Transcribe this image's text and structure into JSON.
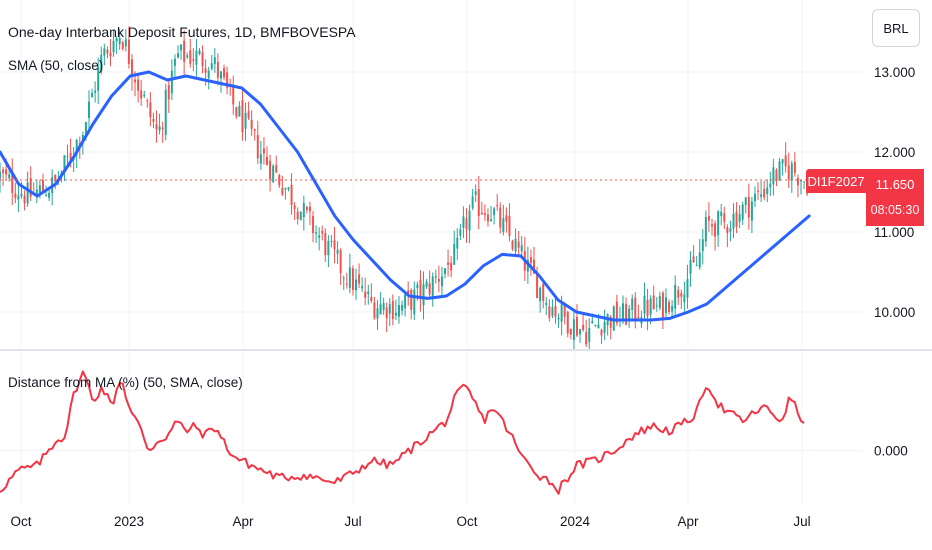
{
  "header": {
    "symbol_title": "One-day Interbank Deposit Futures, 1D, BMFBOVESPA",
    "sma_label": "SMA (50, close)",
    "distance_label": "Distance from MA (%) (50, SMA, close)",
    "currency": "BRL"
  },
  "price_tags": {
    "symbol": "DI1F2027",
    "last_price": "11.650",
    "countdown": "08:05:30"
  },
  "colors": {
    "up": "#26a69a",
    "down": "#ef5350",
    "sma": "#2962ff",
    "distance": "#f23645",
    "tag": "#f23645"
  },
  "chart_data": [
    {
      "type": "candlestick",
      "title": "One-day Interbank Deposit Futures, 1D, BMFBOVESPA",
      "y_ticks": [
        "13.000",
        "12.000",
        "11.000",
        "10.000"
      ],
      "y_tick_values": [
        13.0,
        12.0,
        11.0,
        10.0
      ],
      "ylim": [
        9.55,
        13.9
      ],
      "last_price": 11.65,
      "close_path": [
        [
          0,
          11.7
        ],
        [
          0.03,
          11.45
        ],
        [
          0.06,
          11.6
        ],
        [
          0.09,
          12.3
        ],
        [
          0.11,
          13.2
        ],
        [
          0.13,
          13.5
        ],
        [
          0.15,
          12.8
        ],
        [
          0.17,
          12.2
        ],
        [
          0.19,
          13.2
        ],
        [
          0.21,
          13.2
        ],
        [
          0.23,
          13.1
        ],
        [
          0.25,
          12.6
        ],
        [
          0.28,
          12.0
        ],
        [
          0.31,
          11.5
        ],
        [
          0.34,
          11.0
        ],
        [
          0.37,
          10.5
        ],
        [
          0.4,
          10.1
        ],
        [
          0.43,
          10.05
        ],
        [
          0.46,
          10.3
        ],
        [
          0.49,
          10.7
        ],
        [
          0.5,
          11.1
        ],
        [
          0.51,
          11.35
        ],
        [
          0.53,
          11.25
        ],
        [
          0.55,
          10.9
        ],
        [
          0.57,
          10.5
        ],
        [
          0.59,
          10.1
        ],
        [
          0.61,
          9.9
        ],
        [
          0.63,
          9.75
        ],
        [
          0.65,
          9.9
        ],
        [
          0.67,
          9.95
        ],
        [
          0.69,
          10.05
        ],
        [
          0.71,
          10.05
        ],
        [
          0.73,
          10.3
        ],
        [
          0.75,
          10.6
        ],
        [
          0.76,
          11.1
        ],
        [
          0.78,
          11.1
        ],
        [
          0.8,
          11.3
        ],
        [
          0.82,
          11.5
        ],
        [
          0.83,
          11.7
        ],
        [
          0.85,
          11.8
        ],
        [
          0.86,
          11.7
        ],
        [
          0.87,
          11.6
        ]
      ],
      "series": [
        {
          "name": "SMA (50, close)",
          "points": [
            [
              0,
              12.0
            ],
            [
              0.02,
              11.6
            ],
            [
              0.04,
              11.45
            ],
            [
              0.06,
              11.6
            ],
            [
              0.08,
              11.95
            ],
            [
              0.1,
              12.35
            ],
            [
              0.12,
              12.7
            ],
            [
              0.14,
              12.95
            ],
            [
              0.16,
              13.0
            ],
            [
              0.18,
              12.9
            ],
            [
              0.2,
              12.95
            ],
            [
              0.22,
              12.9
            ],
            [
              0.24,
              12.85
            ],
            [
              0.26,
              12.8
            ],
            [
              0.28,
              12.6
            ],
            [
              0.3,
              12.3
            ],
            [
              0.32,
              12.0
            ],
            [
              0.34,
              11.6
            ],
            [
              0.36,
              11.2
            ],
            [
              0.38,
              10.9
            ],
            [
              0.4,
              10.65
            ],
            [
              0.42,
              10.4
            ],
            [
              0.44,
              10.2
            ],
            [
              0.46,
              10.17
            ],
            [
              0.48,
              10.2
            ],
            [
              0.5,
              10.35
            ],
            [
              0.52,
              10.58
            ],
            [
              0.54,
              10.72
            ],
            [
              0.56,
              10.7
            ],
            [
              0.58,
              10.45
            ],
            [
              0.6,
              10.15
            ],
            [
              0.62,
              10.0
            ],
            [
              0.64,
              9.95
            ],
            [
              0.66,
              9.9
            ],
            [
              0.68,
              9.9
            ],
            [
              0.7,
              9.9
            ],
            [
              0.72,
              9.92
            ],
            [
              0.74,
              10.0
            ],
            [
              0.76,
              10.1
            ],
            [
              0.78,
              10.3
            ],
            [
              0.8,
              10.5
            ],
            [
              0.82,
              10.7
            ],
            [
              0.84,
              10.9
            ],
            [
              0.86,
              11.1
            ],
            [
              0.87,
              11.2
            ]
          ]
        }
      ]
    },
    {
      "type": "line",
      "title": "Distance from MA (%) (50, SMA, close)",
      "x_ticks": [
        "Oct",
        "2023",
        "Apr",
        "Jul",
        "Oct",
        "2024",
        "Apr",
        "Jul"
      ],
      "y_ticks": [
        "0.000"
      ],
      "ylim": [
        -1.0,
        2.0
      ],
      "series": [
        {
          "name": "Distance from MA (%) (50, SMA, close)",
          "points": [
            [
              0,
              -0.8
            ],
            [
              0.02,
              -0.4
            ],
            [
              0.04,
              -0.3
            ],
            [
              0.06,
              0.2
            ],
            [
              0.07,
              0.3
            ],
            [
              0.08,
              1.2
            ],
            [
              0.09,
              1.6
            ],
            [
              0.1,
              1.0
            ],
            [
              0.11,
              1.3
            ],
            [
              0.12,
              0.9
            ],
            [
              0.13,
              1.5
            ],
            [
              0.14,
              0.8
            ],
            [
              0.15,
              0.5
            ],
            [
              0.16,
              0.0
            ],
            [
              0.17,
              0.2
            ],
            [
              0.18,
              0.3
            ],
            [
              0.19,
              0.6
            ],
            [
              0.2,
              0.4
            ],
            [
              0.21,
              0.5
            ],
            [
              0.22,
              0.3
            ],
            [
              0.23,
              0.5
            ],
            [
              0.24,
              0.2
            ],
            [
              0.25,
              -0.1
            ],
            [
              0.27,
              -0.3
            ],
            [
              0.3,
              -0.55
            ],
            [
              0.33,
              -0.5
            ],
            [
              0.36,
              -0.65
            ],
            [
              0.38,
              -0.45
            ],
            [
              0.4,
              -0.2
            ],
            [
              0.42,
              -0.3
            ],
            [
              0.44,
              0.0
            ],
            [
              0.46,
              0.3
            ],
            [
              0.48,
              0.6
            ],
            [
              0.49,
              1.1
            ],
            [
              0.5,
              1.3
            ],
            [
              0.51,
              1.0
            ],
            [
              0.52,
              0.6
            ],
            [
              0.53,
              0.9
            ],
            [
              0.54,
              0.6
            ],
            [
              0.55,
              0.3
            ],
            [
              0.56,
              -0.1
            ],
            [
              0.58,
              -0.5
            ],
            [
              0.59,
              -0.6
            ],
            [
              0.6,
              -0.8
            ],
            [
              0.61,
              -0.55
            ],
            [
              0.62,
              -0.3
            ],
            [
              0.64,
              -0.2
            ],
            [
              0.66,
              0.0
            ],
            [
              0.68,
              0.3
            ],
            [
              0.7,
              0.5
            ],
            [
              0.72,
              0.4
            ],
            [
              0.74,
              0.6
            ],
            [
              0.75,
              0.8
            ],
            [
              0.76,
              1.4
            ],
            [
              0.77,
              1.0
            ],
            [
              0.78,
              0.8
            ],
            [
              0.8,
              0.6
            ],
            [
              0.82,
              0.9
            ],
            [
              0.84,
              0.6
            ],
            [
              0.85,
              1.1
            ],
            [
              0.86,
              0.7
            ],
            [
              0.865,
              0.45
            ]
          ]
        }
      ]
    }
  ]
}
